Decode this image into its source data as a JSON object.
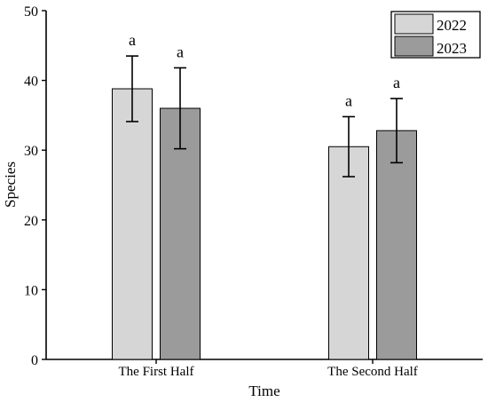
{
  "chart_data": {
    "type": "bar",
    "title": "",
    "xlabel": "Time",
    "ylabel": "Species",
    "categories": [
      "The First Half",
      "The Second Half"
    ],
    "series": [
      {
        "name": "2022",
        "values": [
          38.8,
          30.5
        ],
        "errors": [
          4.7,
          4.3
        ],
        "letters": [
          "a",
          "a"
        ],
        "color": "#d6d6d6"
      },
      {
        "name": "2023",
        "values": [
          36.0,
          32.8
        ],
        "errors": [
          5.8,
          4.6
        ],
        "letters": [
          "a",
          "a"
        ],
        "color": "#9b9b9b"
      }
    ],
    "ylim": [
      0,
      50
    ],
    "yticks": [
      0,
      10,
      20,
      30,
      40,
      50
    ],
    "legend_position": "top-right",
    "grid": false
  }
}
